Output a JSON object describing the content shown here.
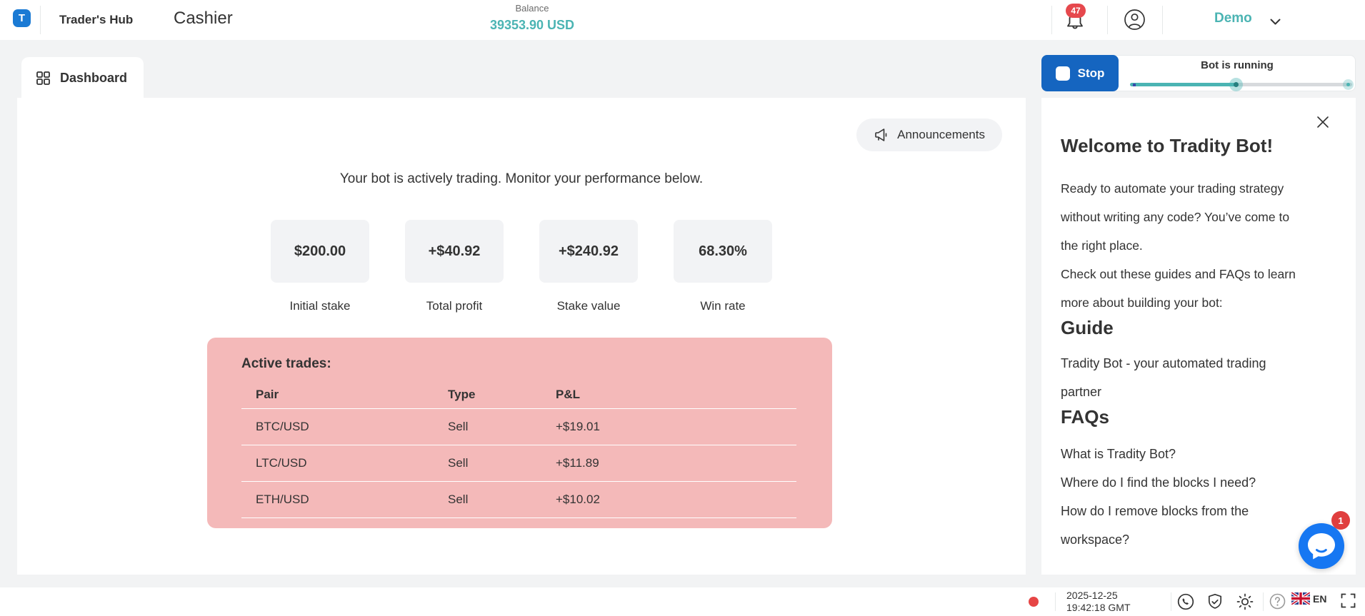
{
  "header": {
    "logo_letter": "T",
    "app_title": "Trader's Hub",
    "page_title": "Cashier",
    "balance_label": "Balance",
    "balance_value": "39353.90 USD",
    "notification_count": "47",
    "account_type": "Demo"
  },
  "tabs": {
    "dashboard_label": "Dashboard"
  },
  "bot_bar": {
    "stop_label": "Stop",
    "status": "Bot is running",
    "progress_percent": 48
  },
  "main": {
    "announcements_label": "Announcements",
    "message": "Your bot is actively trading. Monitor your performance below.",
    "stats": [
      {
        "value": "$200.00",
        "label": "Initial stake"
      },
      {
        "value": "+$40.92",
        "label": "Total profit"
      },
      {
        "value": "+$240.92",
        "label": "Stake value"
      },
      {
        "value": "68.30%",
        "label": "Win rate"
      }
    ],
    "active_trades": {
      "title": "Active trades:",
      "columns": [
        "Pair",
        "Type",
        "P&L"
      ],
      "rows": [
        {
          "pair": "BTC/USD",
          "type": "Sell",
          "pnl": "+$19.01"
        },
        {
          "pair": "LTC/USD",
          "type": "Sell",
          "pnl": "+$11.89"
        },
        {
          "pair": "ETH/USD",
          "type": "Sell",
          "pnl": "+$10.02"
        }
      ]
    }
  },
  "help_panel": {
    "title": "Welcome to Tradity Bot!",
    "intro1": "Ready to automate your trading strategy without writing any code? You’ve come to the right place.",
    "intro2": "Check out these guides and FAQs to learn more about building your bot:",
    "guide_heading": "Guide",
    "guide_link": "Tradity Bot - your automated trading partner",
    "faq_heading": "FAQs",
    "faqs": [
      "What is Tradity Bot?",
      "Where do I find the blocks I need?",
      "How do I remove blocks from the workspace?"
    ]
  },
  "footer": {
    "date": "2025-12-25",
    "time": "19:42:18 GMT",
    "language": "EN"
  },
  "chat": {
    "unread_count": "1"
  },
  "colors": {
    "accent_teal": "#4bb4b3",
    "stop_blue": "#1565c0",
    "logo_blue": "#1a7ad4",
    "panel_pink": "#f4b9b9",
    "badge_red": "#e6484d",
    "chat_blue": "#1677f2",
    "page_gray": "#f2f3f4"
  }
}
